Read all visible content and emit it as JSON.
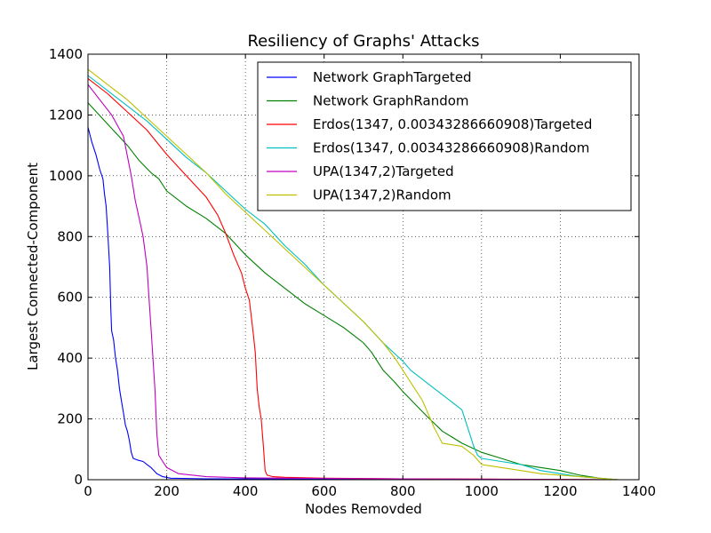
{
  "chart_data": {
    "type": "line",
    "title": "Resiliency of Graphs' Attacks",
    "xlabel": "Nodes Removded",
    "ylabel": "Largest Connected-Component",
    "xlim": [
      0,
      1400
    ],
    "ylim": [
      0,
      1400
    ],
    "xticks": [
      0,
      200,
      400,
      600,
      800,
      1000,
      1200,
      1400
    ],
    "yticks": [
      0,
      200,
      400,
      600,
      800,
      1000,
      1200,
      1400
    ],
    "grid": true,
    "legend_position": "top-right",
    "series": [
      {
        "name": "Network GraphTargeted",
        "color": "#0000ff",
        "points": [
          [
            0,
            1160
          ],
          [
            10,
            1110
          ],
          [
            20,
            1070
          ],
          [
            30,
            1020
          ],
          [
            38,
            990
          ],
          [
            42,
            940
          ],
          [
            46,
            900
          ],
          [
            50,
            820
          ],
          [
            55,
            700
          ],
          [
            58,
            560
          ],
          [
            60,
            490
          ],
          [
            65,
            460
          ],
          [
            70,
            400
          ],
          [
            75,
            360
          ],
          [
            80,
            300
          ],
          [
            85,
            260
          ],
          [
            90,
            220
          ],
          [
            95,
            180
          ],
          [
            100,
            160
          ],
          [
            105,
            130
          ],
          [
            110,
            90
          ],
          [
            115,
            70
          ],
          [
            125,
            65
          ],
          [
            140,
            60
          ],
          [
            150,
            50
          ],
          [
            160,
            40
          ],
          [
            175,
            20
          ],
          [
            190,
            10
          ],
          [
            210,
            5
          ],
          [
            300,
            3
          ],
          [
            600,
            2
          ],
          [
            900,
            1
          ],
          [
            1347,
            0
          ]
        ]
      },
      {
        "name": "Network GraphRandom",
        "color": "#008000",
        "points": [
          [
            0,
            1240
          ],
          [
            50,
            1170
          ],
          [
            100,
            1100
          ],
          [
            130,
            1050
          ],
          [
            160,
            1010
          ],
          [
            180,
            990
          ],
          [
            200,
            950
          ],
          [
            250,
            900
          ],
          [
            300,
            860
          ],
          [
            350,
            810
          ],
          [
            400,
            740
          ],
          [
            450,
            680
          ],
          [
            500,
            630
          ],
          [
            550,
            580
          ],
          [
            600,
            540
          ],
          [
            650,
            500
          ],
          [
            700,
            450
          ],
          [
            720,
            420
          ],
          [
            750,
            360
          ],
          [
            780,
            320
          ],
          [
            800,
            290
          ],
          [
            830,
            250
          ],
          [
            860,
            210
          ],
          [
            900,
            160
          ],
          [
            950,
            120
          ],
          [
            1000,
            90
          ],
          [
            1050,
            70
          ],
          [
            1100,
            50
          ],
          [
            1150,
            40
          ],
          [
            1200,
            30
          ],
          [
            1250,
            15
          ],
          [
            1300,
            5
          ],
          [
            1347,
            0
          ]
        ]
      },
      {
        "name": "Erdos(1347, 0.00343286660908)Targeted",
        "color": "#ff0000",
        "points": [
          [
            0,
            1320
          ],
          [
            50,
            1270
          ],
          [
            100,
            1210
          ],
          [
            150,
            1150
          ],
          [
            200,
            1070
          ],
          [
            250,
            1000
          ],
          [
            300,
            930
          ],
          [
            330,
            870
          ],
          [
            350,
            810
          ],
          [
            370,
            740
          ],
          [
            390,
            680
          ],
          [
            400,
            630
          ],
          [
            410,
            590
          ],
          [
            420,
            480
          ],
          [
            425,
            420
          ],
          [
            430,
            300
          ],
          [
            435,
            240
          ],
          [
            440,
            200
          ],
          [
            445,
            120
          ],
          [
            450,
            30
          ],
          [
            455,
            15
          ],
          [
            470,
            10
          ],
          [
            500,
            8
          ],
          [
            600,
            5
          ],
          [
            800,
            3
          ],
          [
            1000,
            2
          ],
          [
            1200,
            1
          ],
          [
            1347,
            0
          ]
        ]
      },
      {
        "name": "Erdos(1347, 0.00343286660908)Random",
        "color": "#00bfbf",
        "points": [
          [
            0,
            1330
          ],
          [
            50,
            1280
          ],
          [
            100,
            1230
          ],
          [
            150,
            1180
          ],
          [
            200,
            1120
          ],
          [
            250,
            1060
          ],
          [
            300,
            1010
          ],
          [
            350,
            950
          ],
          [
            400,
            890
          ],
          [
            450,
            840
          ],
          [
            500,
            770
          ],
          [
            550,
            710
          ],
          [
            600,
            640
          ],
          [
            650,
            580
          ],
          [
            700,
            520
          ],
          [
            750,
            450
          ],
          [
            800,
            390
          ],
          [
            820,
            360
          ],
          [
            850,
            330
          ],
          [
            880,
            300
          ],
          [
            900,
            280
          ],
          [
            950,
            230
          ],
          [
            970,
            150
          ],
          [
            980,
            110
          ],
          [
            990,
            80
          ],
          [
            1000,
            70
          ],
          [
            1050,
            60
          ],
          [
            1100,
            50
          ],
          [
            1150,
            30
          ],
          [
            1200,
            20
          ],
          [
            1250,
            10
          ],
          [
            1300,
            5
          ],
          [
            1347,
            0
          ]
        ]
      },
      {
        "name": "UPA(1347,2)Targeted",
        "color": "#bf00bf",
        "points": [
          [
            0,
            1300
          ],
          [
            30,
            1250
          ],
          [
            60,
            1200
          ],
          [
            90,
            1130
          ],
          [
            110,
            1000
          ],
          [
            120,
            920
          ],
          [
            130,
            860
          ],
          [
            140,
            800
          ],
          [
            150,
            700
          ],
          [
            155,
            600
          ],
          [
            160,
            500
          ],
          [
            165,
            400
          ],
          [
            170,
            300
          ],
          [
            175,
            150
          ],
          [
            180,
            80
          ],
          [
            190,
            60
          ],
          [
            200,
            40
          ],
          [
            230,
            20
          ],
          [
            300,
            10
          ],
          [
            400,
            6
          ],
          [
            600,
            4
          ],
          [
            900,
            2
          ],
          [
            1347,
            0
          ]
        ]
      },
      {
        "name": "UPA(1347,2)Random",
        "color": "#bfbf00",
        "points": [
          [
            0,
            1350
          ],
          [
            50,
            1300
          ],
          [
            100,
            1250
          ],
          [
            150,
            1190
          ],
          [
            200,
            1130
          ],
          [
            250,
            1070
          ],
          [
            300,
            1010
          ],
          [
            350,
            940
          ],
          [
            400,
            880
          ],
          [
            450,
            820
          ],
          [
            500,
            760
          ],
          [
            550,
            700
          ],
          [
            600,
            640
          ],
          [
            650,
            580
          ],
          [
            700,
            520
          ],
          [
            750,
            450
          ],
          [
            780,
            400
          ],
          [
            800,
            360
          ],
          [
            830,
            300
          ],
          [
            850,
            260
          ],
          [
            870,
            200
          ],
          [
            880,
            170
          ],
          [
            900,
            120
          ],
          [
            950,
            110
          ],
          [
            980,
            80
          ],
          [
            1000,
            50
          ],
          [
            1050,
            40
          ],
          [
            1100,
            30
          ],
          [
            1150,
            20
          ],
          [
            1200,
            15
          ],
          [
            1250,
            10
          ],
          [
            1300,
            5
          ],
          [
            1347,
            0
          ]
        ]
      }
    ]
  }
}
